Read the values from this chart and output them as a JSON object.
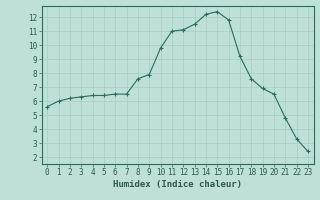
{
  "x": [
    0,
    1,
    2,
    3,
    4,
    5,
    6,
    7,
    8,
    9,
    10,
    11,
    12,
    13,
    14,
    15,
    16,
    17,
    18,
    19,
    20,
    21,
    22,
    23
  ],
  "y": [
    5.6,
    6.0,
    6.2,
    6.3,
    6.4,
    6.4,
    6.5,
    6.5,
    7.6,
    7.9,
    9.8,
    11.0,
    11.1,
    11.5,
    12.2,
    12.4,
    11.8,
    9.2,
    7.6,
    6.9,
    6.5,
    4.8,
    3.3,
    2.4
  ],
  "line_color": "#2d6b5e",
  "marker_color": "#2d6b5e",
  "bg_color": "#bde0d8",
  "grid_color": "#a8ccc4",
  "xlabel": "Humidex (Indice chaleur)",
  "xlim": [
    -0.5,
    23.5
  ],
  "ylim": [
    1.5,
    12.8
  ],
  "yticks": [
    2,
    3,
    4,
    5,
    6,
    7,
    8,
    9,
    10,
    11,
    12
  ],
  "xticks": [
    0,
    1,
    2,
    3,
    4,
    5,
    6,
    7,
    8,
    9,
    10,
    11,
    12,
    13,
    14,
    15,
    16,
    17,
    18,
    19,
    20,
    21,
    22,
    23
  ],
  "tick_labelsize": 5.5,
  "xlabel_fontsize": 6.5
}
